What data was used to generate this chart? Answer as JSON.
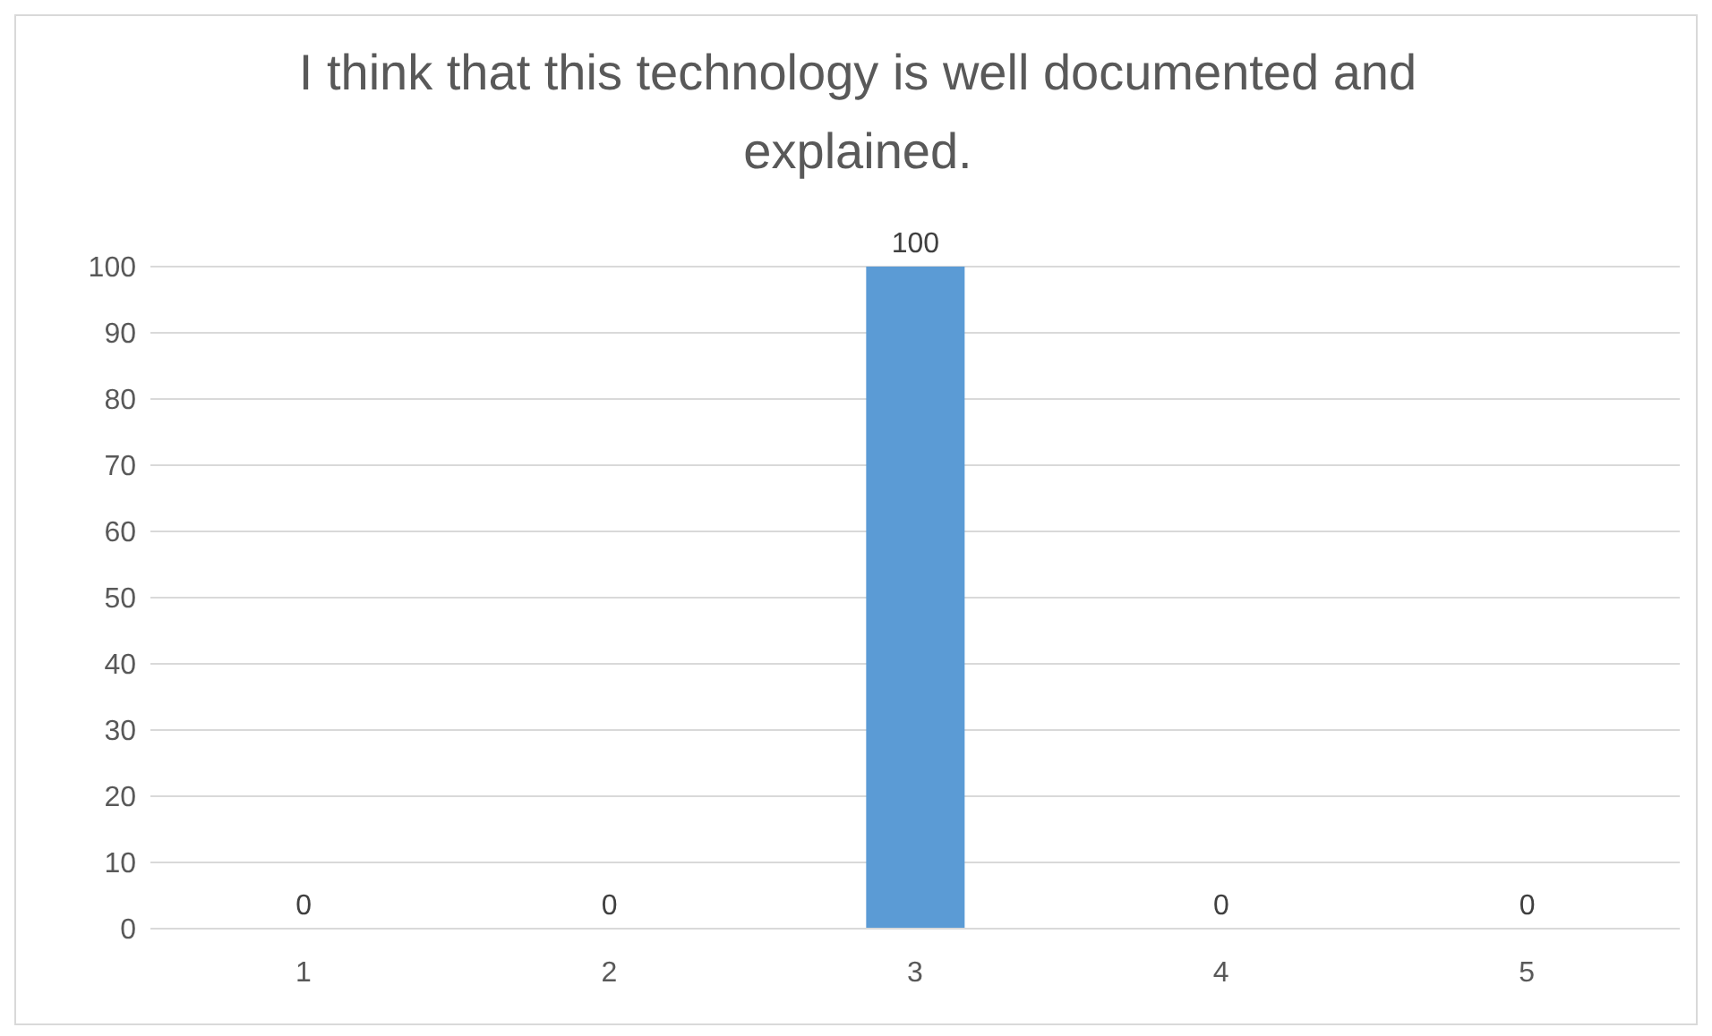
{
  "chart_data": {
    "type": "bar",
    "title": "I think that this technology is well documented and explained.",
    "categories": [
      "1",
      "2",
      "3",
      "4",
      "5"
    ],
    "values": [
      0,
      0,
      100,
      0,
      0
    ],
    "color": "#5b9bd5",
    "ylim": [
      0,
      100
    ],
    "yticks": [
      0,
      10,
      20,
      30,
      40,
      50,
      60,
      70,
      80,
      90,
      100
    ],
    "grid": "y",
    "data_labels": true,
    "legend": false
  }
}
